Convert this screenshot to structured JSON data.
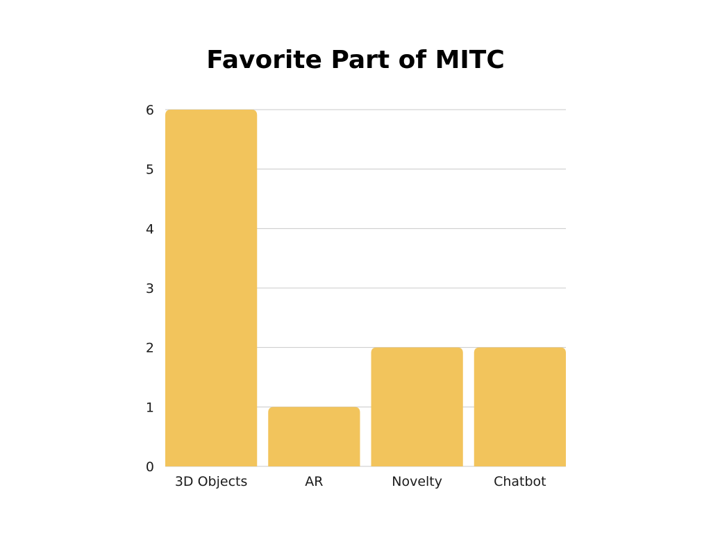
{
  "chart_data": {
    "type": "bar",
    "title": "Favorite Part of MITC",
    "categories": [
      "3D Objects",
      "AR",
      "Novelty",
      "Chatbot"
    ],
    "values": [
      6,
      1,
      2,
      2
    ],
    "ylim": [
      0,
      6
    ],
    "yticks": [
      "0",
      "1",
      "2",
      "3",
      "4",
      "5",
      "6"
    ],
    "xlabel": "",
    "ylabel": "",
    "grid": true,
    "bar_color": "#F2C45C",
    "grid_color": "#C8C8C8"
  }
}
